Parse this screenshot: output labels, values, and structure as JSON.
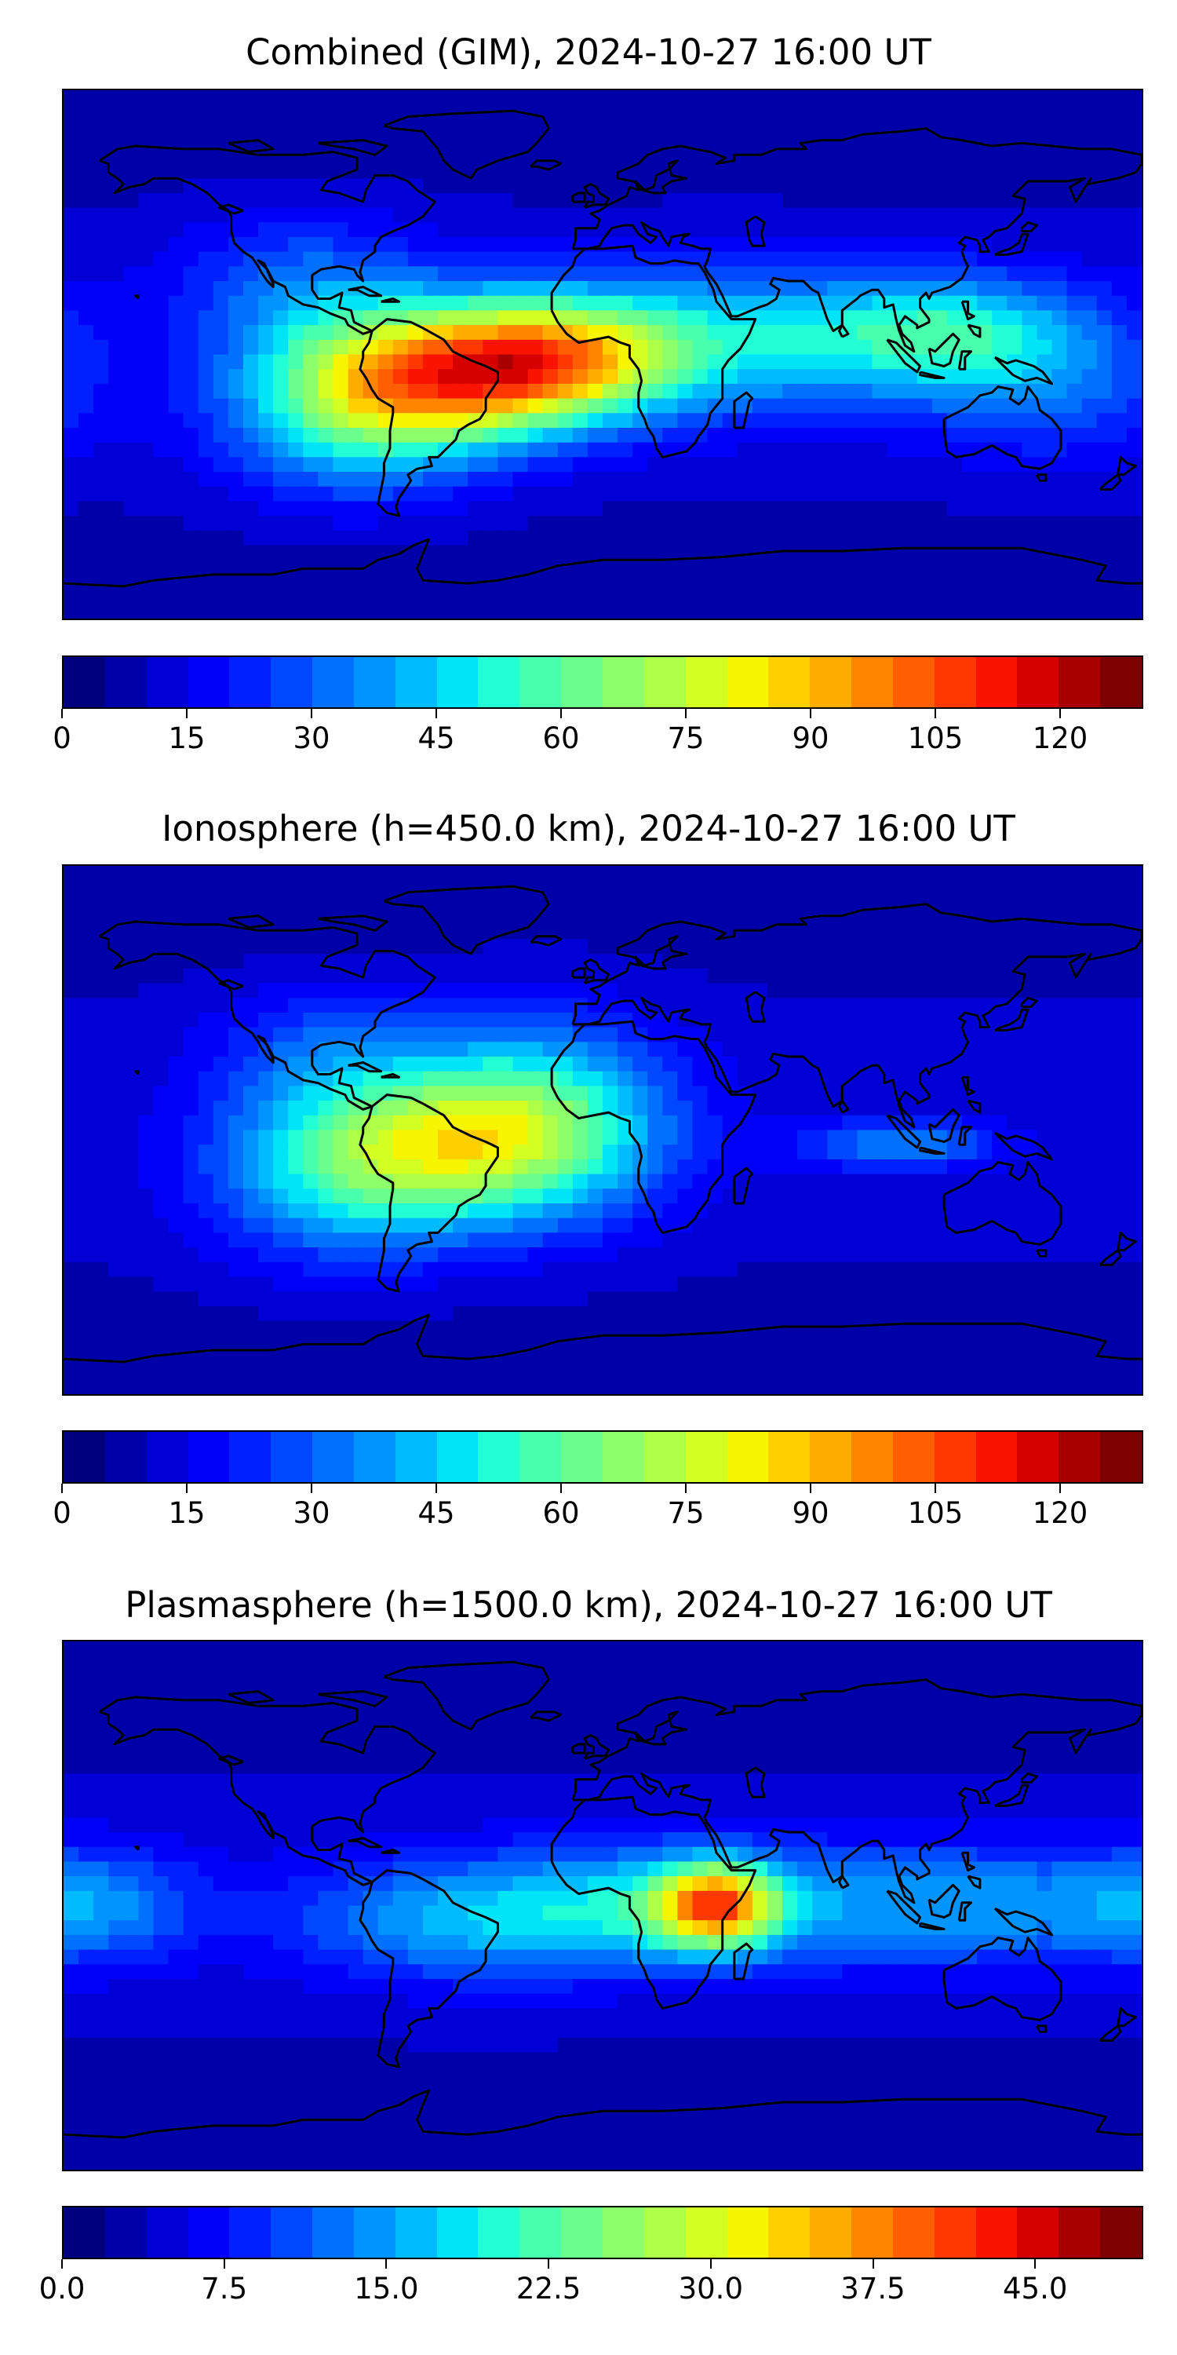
{
  "colors": [
    "#00007f",
    "#0000a8",
    "#0000d6",
    "#0000fa",
    "#0020ff",
    "#0048ff",
    "#0070ff",
    "#0094ff",
    "#00bcff",
    "#00e4f8",
    "#22ffd4",
    "#48ffad",
    "#6aff8c",
    "#8cff6a",
    "#adff48",
    "#d4ff22",
    "#f8f500",
    "#ffd000",
    "#ffac00",
    "#ff8500",
    "#ff5f00",
    "#ff3800",
    "#fa1300",
    "#d60000",
    "#a80000",
    "#7f0000"
  ],
  "coastline_color": "#000000",
  "panels": [
    {
      "title": "Combined (GIM), 2024-10-27 16:00 UT",
      "vmax": 130,
      "tick_values": [
        0,
        15,
        30,
        45,
        60,
        75,
        90,
        105,
        120
      ],
      "tick_labels": [
        "0",
        "15",
        "30",
        "45",
        "60",
        "75",
        "90",
        "105",
        "120"
      ],
      "blobs": [
        {
          "lon": -55,
          "lat": -8,
          "amp": 70,
          "slon": 35,
          "slat": 17
        },
        {
          "lon": -15,
          "lat": -2,
          "amp": 45,
          "slon": 28,
          "slat": 14
        },
        {
          "lon": -85,
          "lat": -25,
          "amp": 30,
          "slon": 30,
          "slat": 20
        },
        {
          "lon": 40,
          "lat": 5,
          "amp": 35,
          "slon": 55,
          "slat": 18
        },
        {
          "lon": 115,
          "lat": 8,
          "amp": 28,
          "slon": 30,
          "slat": 14
        },
        {
          "lon": 150,
          "lat": -10,
          "amp": 18,
          "slon": 30,
          "slat": 20
        },
        {
          "lon": -100,
          "lat": 25,
          "amp": 20,
          "slon": 30,
          "slat": 18
        }
      ]
    },
    {
      "title": "Ionosphere  (h=450.0 km), 2024-10-27 16:00 UT",
      "vmax": 130,
      "tick_values": [
        0,
        15,
        30,
        45,
        60,
        75,
        90,
        105,
        120
      ],
      "tick_labels": [
        "0",
        "15",
        "30",
        "45",
        "60",
        "75",
        "90",
        "105",
        "120"
      ],
      "blobs": [
        {
          "lon": -50,
          "lat": -5,
          "amp": 55,
          "slon": 40,
          "slat": 20
        },
        {
          "lon": -20,
          "lat": 10,
          "amp": 25,
          "slon": 30,
          "slat": 25
        },
        {
          "lon": -90,
          "lat": -20,
          "amp": 22,
          "slon": 30,
          "slat": 22
        },
        {
          "lon": 100,
          "lat": -5,
          "amp": 25,
          "slon": 22,
          "slat": 6
        },
        {
          "lon": -95,
          "lat": 30,
          "amp": 15,
          "slon": 25,
          "slat": 15
        }
      ]
    },
    {
      "title": "Plasmasphere (h=1500.0 km), 2024-10-27 16:00 UT",
      "vmax": 50,
      "tick_values": [
        0,
        7.5,
        15,
        22.5,
        30,
        37.5,
        45
      ],
      "tick_labels": [
        "0.0",
        "7.5",
        "15.0",
        "22.5",
        "30.0",
        "37.5",
        "45.0"
      ],
      "blobs": [
        {
          "lon": 38,
          "lat": 0,
          "amp": 25,
          "slon": 14,
          "slat": 10
        },
        {
          "lon": 20,
          "lat": 0,
          "amp": 12,
          "slon": 40,
          "slat": 15
        },
        {
          "lon": -50,
          "lat": -5,
          "amp": 10,
          "slon": 40,
          "slat": 15
        },
        {
          "lon": 120,
          "lat": 0,
          "amp": 10,
          "slon": 45,
          "slat": 15
        },
        {
          "lon": -170,
          "lat": 0,
          "amp": 8,
          "slon": 25,
          "slat": 14
        }
      ]
    }
  ]
}
